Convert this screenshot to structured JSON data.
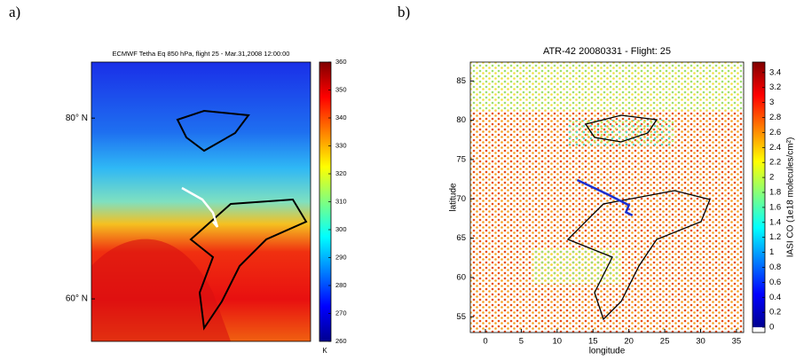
{
  "chart_data": [
    {
      "type": "heatmap",
      "panel_label": "a)",
      "title": "ECMWF Tetha Eq 850 hPa, flight 25 - Mar.31,2008 12:00:00",
      "ylim": [
        55.3,
        86.2
      ],
      "yticks": [
        {
          "value": 80,
          "label": "80° N"
        },
        {
          "value": 60,
          "label": "60° N"
        }
      ],
      "clim": [
        260,
        360
      ],
      "cticks": [
        260,
        270,
        280,
        290,
        300,
        310,
        320,
        330,
        340,
        350,
        360
      ],
      "colorbar_label": "K",
      "colormap": "jet",
      "track_color": "#ffffff"
    },
    {
      "type": "scatter",
      "panel_label": "b)",
      "title": "ATR-42 20080331 - Flight: 25",
      "xlabel": "longitude",
      "ylabel": "latitude",
      "xlim": [
        -2.1,
        36
      ],
      "xticks": [
        0,
        5,
        10,
        15,
        20,
        25,
        30,
        35
      ],
      "ylim": [
        53,
        87.4
      ],
      "yticks": [
        55,
        60,
        65,
        70,
        75,
        80,
        85
      ],
      "clim": [
        -0.07,
        3.54
      ],
      "cticks": [
        0,
        0.2,
        0.4,
        0.6,
        0.8,
        1,
        1.2,
        1.4,
        1.6,
        1.8,
        2,
        2.2,
        2.4,
        2.6,
        2.8,
        3,
        3.2,
        3.4
      ],
      "colorbar_label": "IASI CO (1e18 molecules/cm²)",
      "colormap": "jet",
      "track": {
        "color": "#1a2fd0",
        "x": [
          12.8,
          17,
          20,
          19.6,
          20.5
        ],
        "y": [
          72.4,
          70.6,
          69.2,
          68.3,
          67.9
        ]
      }
    }
  ]
}
